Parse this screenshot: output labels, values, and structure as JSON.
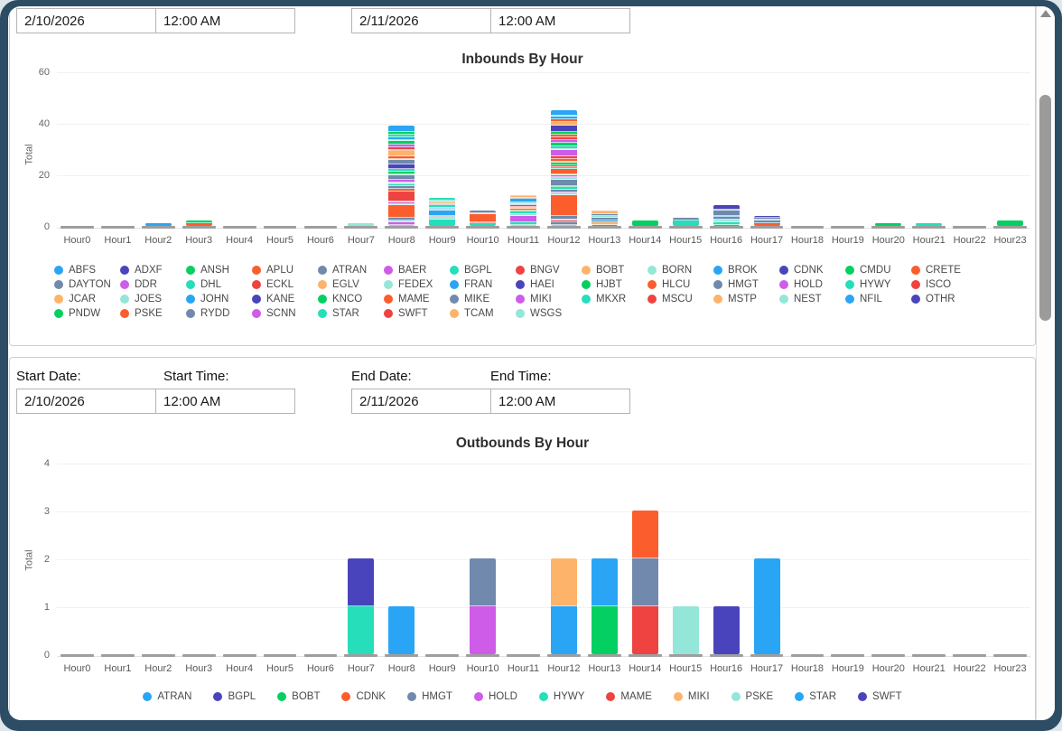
{
  "palette": {
    "blue": "#2aa5f5",
    "indigo": "#4a44bc",
    "green": "#04d061",
    "orange-red": "#fb5d2d",
    "slate": "#7089ac",
    "magenta": "#cf5ce8",
    "teal": "#27debb",
    "red": "#ee4340",
    "light-orange": "#fdb369",
    "light-teal": "#94e6d8"
  },
  "header_inputs": {
    "start_date": "2/10/2026",
    "start_time": "12:00 AM",
    "end_date": "2/11/2026",
    "end_time": "12:00 AM"
  },
  "filter_form": {
    "start_date_label": "Start Date:",
    "start_time_label": "Start Time:",
    "end_date_label": "End Date:",
    "end_time_label": "End Time:",
    "start_date": "2/10/2026",
    "start_time": "12:00 AM",
    "end_date": "2/11/2026",
    "end_time": "12:00 AM"
  },
  "chart_data": [
    {
      "type": "bar",
      "stacked": true,
      "title": "Inbounds By Hour",
      "ylabel": "Total",
      "xlabel": "",
      "ylim": [
        0,
        60
      ],
      "yticks": [
        0,
        20,
        40,
        60
      ],
      "grid": true,
      "legend_position": "bottom",
      "categories": [
        "Hour0",
        "Hour1",
        "Hour2",
        "Hour3",
        "Hour4",
        "Hour5",
        "Hour6",
        "Hour7",
        "Hour8",
        "Hour9",
        "Hour10",
        "Hour11",
        "Hour12",
        "Hour13",
        "Hour14",
        "Hour15",
        "Hour16",
        "Hour17",
        "Hour18",
        "Hour19",
        "Hour20",
        "Hour21",
        "Hour22",
        "Hour23"
      ],
      "totals": [
        0,
        0,
        1,
        2,
        0,
        0,
        0,
        1,
        39,
        11,
        6,
        12,
        45,
        6,
        2,
        3,
        8,
        4,
        0,
        0,
        1,
        1,
        0,
        2
      ],
      "bar_segments": [
        [],
        [],
        [
          [
            "blue",
            1
          ]
        ],
        [
          [
            "orange-red",
            1
          ],
          [
            "green",
            1
          ]
        ],
        [],
        [],
        [],
        [
          [
            "light-teal",
            1
          ]
        ],
        [
          [
            "light-orange",
            0.5
          ],
          [
            "magenta",
            1
          ],
          [
            "light-teal",
            0.5
          ],
          [
            "slate",
            1
          ],
          [
            "orange-red",
            5
          ],
          [
            "light-teal",
            0.5
          ],
          [
            "magenta",
            0.5
          ],
          [
            "light-orange",
            0.5
          ],
          [
            "red",
            4
          ],
          [
            "orange-red",
            1
          ],
          [
            "slate",
            1
          ],
          [
            "teal",
            0.5
          ],
          [
            "green",
            0.5
          ],
          [
            "light-teal",
            0.5
          ],
          [
            "magenta",
            1
          ],
          [
            "slate",
            1.5
          ],
          [
            "light-teal",
            0.5
          ],
          [
            "green",
            1
          ],
          [
            "teal",
            1
          ],
          [
            "indigo",
            2
          ],
          [
            "slate",
            1.5
          ],
          [
            "light-teal",
            0.5
          ],
          [
            "orange-red",
            1
          ],
          [
            "light-orange",
            2
          ],
          [
            "orange-red",
            0.5
          ],
          [
            "red",
            1
          ],
          [
            "magenta",
            1
          ],
          [
            "green",
            1.5
          ],
          [
            "light-teal",
            0.5
          ],
          [
            "blue",
            1
          ],
          [
            "teal",
            1
          ],
          [
            "green",
            1
          ],
          [
            "blue",
            2.5
          ]
        ],
        [
          [
            "teal",
            2.5
          ],
          [
            "light-teal",
            0.5
          ],
          [
            "orange-red",
            0.5
          ],
          [
            "slate",
            0.5
          ],
          [
            "blue",
            2
          ],
          [
            "light-teal",
            0.5
          ],
          [
            "blue",
            0.5
          ],
          [
            "teal",
            1
          ],
          [
            "slate",
            0.5
          ],
          [
            "light-orange",
            0.5
          ],
          [
            "light-teal",
            1
          ],
          [
            "teal",
            1
          ]
        ],
        [
          [
            "teal",
            1
          ],
          [
            "red",
            0.5
          ],
          [
            "orange-red",
            3
          ],
          [
            "light-teal",
            0.5
          ],
          [
            "slate",
            1
          ]
        ],
        [
          [
            "light-teal",
            0.5
          ],
          [
            "teal",
            1
          ],
          [
            "magenta",
            2.5
          ],
          [
            "light-teal",
            0.5
          ],
          [
            "teal",
            1
          ],
          [
            "green",
            0.5
          ],
          [
            "orange-red",
            0.5
          ],
          [
            "light-orange",
            0.5
          ],
          [
            "magenta",
            0.5
          ],
          [
            "red",
            0.5
          ],
          [
            "slate",
            0.5
          ],
          [
            "light-teal",
            0.5
          ],
          [
            "blue",
            1.5
          ],
          [
            "slate",
            0.5
          ],
          [
            "light-orange",
            0.5
          ],
          [
            "blue",
            0.5
          ]
        ],
        [
          [
            "light-orange",
            0.5
          ],
          [
            "slate",
            1
          ],
          [
            "red",
            0.5
          ],
          [
            "light-teal",
            0.5
          ],
          [
            "slate",
            1.5
          ],
          [
            "orange-red",
            8
          ],
          [
            "light-teal",
            0.5
          ],
          [
            "magenta",
            0.5
          ],
          [
            "slate",
            1
          ],
          [
            "teal",
            1
          ],
          [
            "green",
            0.5
          ],
          [
            "slate",
            2.5
          ],
          [
            "light-teal",
            0.5
          ],
          [
            "blue",
            0.5
          ],
          [
            "magenta",
            0.5
          ],
          [
            "light-teal",
            0.5
          ],
          [
            "orange-red",
            2
          ],
          [
            "teal",
            1
          ],
          [
            "red",
            0.5
          ],
          [
            "green",
            1
          ],
          [
            "light-orange",
            0.5
          ],
          [
            "orange-red",
            1
          ],
          [
            "red",
            1
          ],
          [
            "magenta",
            2.5
          ],
          [
            "light-teal",
            0.5
          ],
          [
            "teal",
            1
          ],
          [
            "green",
            1.5
          ],
          [
            "magenta",
            1
          ],
          [
            "red",
            1
          ],
          [
            "orange-red",
            1
          ],
          [
            "green",
            1
          ],
          [
            "indigo",
            2.5
          ],
          [
            "light-orange",
            1.5
          ],
          [
            "orange-red",
            1
          ],
          [
            "blue",
            1
          ],
          [
            "light-teal",
            0.5
          ],
          [
            "blue",
            2
          ]
        ],
        [
          [
            "orange-red",
            0.5
          ],
          [
            "light-orange",
            1
          ],
          [
            "blue",
            0.5
          ],
          [
            "slate",
            1
          ],
          [
            "light-teal",
            1
          ],
          [
            "slate",
            0.5
          ],
          [
            "light-orange",
            1
          ],
          [
            "orange-red",
            0.5
          ]
        ],
        [
          [
            "green",
            2
          ]
        ],
        [
          [
            "teal",
            2
          ],
          [
            "slate",
            1
          ]
        ],
        [
          [
            "magenta",
            0.5
          ],
          [
            "teal",
            1
          ],
          [
            "light-teal",
            0.5
          ],
          [
            "teal",
            0.5
          ],
          [
            "slate",
            1
          ],
          [
            "blue",
            0.5
          ],
          [
            "slate",
            2
          ],
          [
            "light-teal",
            0.5
          ],
          [
            "indigo",
            1.5
          ]
        ],
        [
          [
            "orange-red",
            1
          ],
          [
            "slate",
            1
          ],
          [
            "light-teal",
            0.5
          ],
          [
            "slate",
            0.5
          ],
          [
            "indigo",
            1
          ]
        ],
        [],
        [],
        [
          [
            "green",
            1
          ]
        ],
        [
          [
            "teal",
            1
          ]
        ],
        [],
        [
          [
            "green",
            2
          ]
        ]
      ],
      "legend": [
        {
          "label": "ABFS",
          "color": "blue"
        },
        {
          "label": "ADXF",
          "color": "indigo"
        },
        {
          "label": "ANSH",
          "color": "green"
        },
        {
          "label": "APLU",
          "color": "orange-red"
        },
        {
          "label": "ATRAN",
          "color": "slate"
        },
        {
          "label": "BAER",
          "color": "magenta"
        },
        {
          "label": "BGPL",
          "color": "teal"
        },
        {
          "label": "BNGV",
          "color": "red"
        },
        {
          "label": "BOBT",
          "color": "light-orange"
        },
        {
          "label": "BORN",
          "color": "light-teal"
        },
        {
          "label": "BROK",
          "color": "blue"
        },
        {
          "label": "CDNK",
          "color": "indigo"
        },
        {
          "label": "CMDU",
          "color": "green"
        },
        {
          "label": "CRETE",
          "color": "orange-red"
        },
        {
          "label": "DAYTON",
          "color": "slate"
        },
        {
          "label": "DDR",
          "color": "magenta"
        },
        {
          "label": "DHL",
          "color": "teal"
        },
        {
          "label": "ECKL",
          "color": "red"
        },
        {
          "label": "EGLV",
          "color": "light-orange"
        },
        {
          "label": "FEDEX",
          "color": "light-teal"
        },
        {
          "label": "FRAN",
          "color": "blue"
        },
        {
          "label": "HAEI",
          "color": "indigo"
        },
        {
          "label": "HJBT",
          "color": "green"
        },
        {
          "label": "HLCU",
          "color": "orange-red"
        },
        {
          "label": "HMGT",
          "color": "slate"
        },
        {
          "label": "HOLD",
          "color": "magenta"
        },
        {
          "label": "HYWY",
          "color": "teal"
        },
        {
          "label": "ISCO",
          "color": "red"
        },
        {
          "label": "JCAR",
          "color": "light-orange"
        },
        {
          "label": "JOES",
          "color": "light-teal"
        },
        {
          "label": "JOHN",
          "color": "blue"
        },
        {
          "label": "KANE",
          "color": "indigo"
        },
        {
          "label": "KNCO",
          "color": "green"
        },
        {
          "label": "MAME",
          "color": "orange-red"
        },
        {
          "label": "MIKE",
          "color": "slate"
        },
        {
          "label": "MIKI",
          "color": "magenta"
        },
        {
          "label": "MKXR",
          "color": "teal"
        },
        {
          "label": "MSCU",
          "color": "red"
        },
        {
          "label": "MSTP",
          "color": "light-orange"
        },
        {
          "label": "NEST",
          "color": "light-teal"
        },
        {
          "label": "NFIL",
          "color": "blue"
        },
        {
          "label": "OTHR",
          "color": "indigo"
        },
        {
          "label": "PNDW",
          "color": "green"
        },
        {
          "label": "PSKE",
          "color": "orange-red"
        },
        {
          "label": "RYDD",
          "color": "slate"
        },
        {
          "label": "SCNN",
          "color": "magenta"
        },
        {
          "label": "STAR",
          "color": "teal"
        },
        {
          "label": "SWFT",
          "color": "red"
        },
        {
          "label": "TCAM",
          "color": "light-orange"
        },
        {
          "label": "WSGS",
          "color": "light-teal"
        }
      ]
    },
    {
      "type": "bar",
      "stacked": true,
      "title": "Outbounds By Hour",
      "ylabel": "Total",
      "xlabel": "",
      "ylim": [
        0,
        4
      ],
      "yticks": [
        0,
        1,
        2,
        3,
        4
      ],
      "grid": true,
      "legend_position": "bottom",
      "categories": [
        "Hour0",
        "Hour1",
        "Hour2",
        "Hour3",
        "Hour4",
        "Hour5",
        "Hour6",
        "Hour7",
        "Hour8",
        "Hour9",
        "Hour10",
        "Hour11",
        "Hour12",
        "Hour13",
        "Hour14",
        "Hour15",
        "Hour16",
        "Hour17",
        "Hour18",
        "Hour19",
        "Hour20",
        "Hour21",
        "Hour22",
        "Hour23"
      ],
      "totals": [
        0,
        0,
        0,
        0,
        0,
        0,
        0,
        2,
        1,
        0,
        2,
        0,
        2,
        2,
        3,
        1,
        1,
        2,
        0,
        0,
        0,
        0,
        0,
        0
      ],
      "stacks": [
        [],
        [],
        [],
        [],
        [],
        [],
        [],
        [
          [
            "HYWY",
            1
          ],
          [
            "BGPL",
            1
          ]
        ],
        [
          [
            "ATRAN",
            1
          ]
        ],
        [],
        [
          [
            "HOLD",
            1
          ],
          [
            "HMGT",
            1
          ]
        ],
        [],
        [
          [
            "STAR",
            1
          ],
          [
            "MIKI",
            1
          ]
        ],
        [
          [
            "BOBT",
            1
          ],
          [
            "ATRAN",
            1
          ]
        ],
        [
          [
            "MAME",
            1
          ],
          [
            "HMGT",
            1
          ],
          [
            "CDNK",
            1
          ]
        ],
        [
          [
            "PSKE",
            1
          ]
        ],
        [
          [
            "SWFT",
            1
          ]
        ],
        [
          [
            "ATRAN",
            2
          ]
        ],
        [],
        [],
        [],
        [],
        [],
        []
      ],
      "legend": [
        {
          "label": "ATRAN",
          "color": "blue"
        },
        {
          "label": "BGPL",
          "color": "indigo"
        },
        {
          "label": "BOBT",
          "color": "green"
        },
        {
          "label": "CDNK",
          "color": "orange-red"
        },
        {
          "label": "HMGT",
          "color": "slate"
        },
        {
          "label": "HOLD",
          "color": "magenta"
        },
        {
          "label": "HYWY",
          "color": "teal"
        },
        {
          "label": "MAME",
          "color": "red"
        },
        {
          "label": "MIKI",
          "color": "light-orange"
        },
        {
          "label": "PSKE",
          "color": "light-teal"
        },
        {
          "label": "STAR",
          "color": "blue"
        },
        {
          "label": "SWFT",
          "color": "indigo"
        }
      ]
    }
  ]
}
